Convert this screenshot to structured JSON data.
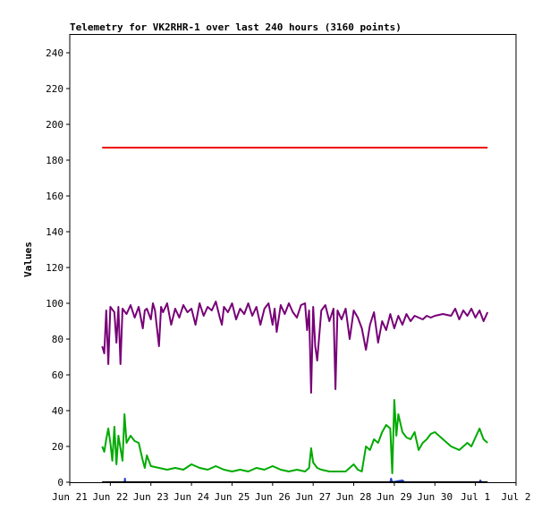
{
  "chart_data": {
    "type": "line",
    "title": "Telemetry for VK2RHR-1 over last 240 hours (3160 points)",
    "xlabel": "",
    "ylabel": "Values",
    "ylim": [
      0,
      250
    ],
    "y_ticks": [
      0,
      20,
      40,
      60,
      80,
      100,
      120,
      140,
      160,
      180,
      200,
      220,
      240
    ],
    "x_ticks": [
      "Jun 21",
      "Jun 22",
      "Jun 23",
      "Jun 24",
      "Jun 25",
      "Jun 26",
      "Jun 27",
      "Jun 28",
      "Jun 29",
      "Jun 30",
      "Jul 1",
      "Jul 2"
    ],
    "xlim_days": [
      21.0,
      32.0
    ],
    "grid": false,
    "legend": "none",
    "series": [
      {
        "color": "#ee0000",
        "points": [
          [
            21.8,
            187
          ],
          [
            22.6,
            187
          ],
          [
            23.6,
            187
          ],
          [
            24.6,
            187
          ],
          [
            25.6,
            187
          ],
          [
            26.6,
            187
          ],
          [
            27.6,
            187
          ],
          [
            28.6,
            187
          ],
          [
            29.6,
            187
          ],
          [
            30.6,
            187
          ],
          [
            31.3,
            187
          ]
        ]
      },
      {
        "color": "#770077",
        "points": [
          [
            21.8,
            76
          ],
          [
            21.85,
            72
          ],
          [
            21.9,
            96
          ],
          [
            21.95,
            66
          ],
          [
            22.0,
            98
          ],
          [
            22.1,
            95
          ],
          [
            22.15,
            78
          ],
          [
            22.2,
            98
          ],
          [
            22.25,
            66
          ],
          [
            22.3,
            97
          ],
          [
            22.4,
            94
          ],
          [
            22.5,
            99
          ],
          [
            22.6,
            92
          ],
          [
            22.7,
            98
          ],
          [
            22.8,
            86
          ],
          [
            22.85,
            96
          ],
          [
            22.9,
            97
          ],
          [
            23.0,
            91
          ],
          [
            23.05,
            100
          ],
          [
            23.1,
            96
          ],
          [
            23.2,
            76
          ],
          [
            23.25,
            98
          ],
          [
            23.3,
            95
          ],
          [
            23.4,
            100
          ],
          [
            23.5,
            88
          ],
          [
            23.6,
            97
          ],
          [
            23.7,
            92
          ],
          [
            23.8,
            99
          ],
          [
            23.9,
            95
          ],
          [
            24.0,
            97
          ],
          [
            24.1,
            88
          ],
          [
            24.2,
            100
          ],
          [
            24.3,
            93
          ],
          [
            24.4,
            98
          ],
          [
            24.5,
            96
          ],
          [
            24.6,
            101
          ],
          [
            24.7,
            92
          ],
          [
            24.75,
            88
          ],
          [
            24.8,
            98
          ],
          [
            24.9,
            95
          ],
          [
            25.0,
            100
          ],
          [
            25.1,
            91
          ],
          [
            25.2,
            97
          ],
          [
            25.3,
            94
          ],
          [
            25.4,
            100
          ],
          [
            25.5,
            93
          ],
          [
            25.6,
            98
          ],
          [
            25.7,
            88
          ],
          [
            25.8,
            97
          ],
          [
            25.9,
            100
          ],
          [
            26.0,
            88
          ],
          [
            26.05,
            97
          ],
          [
            26.1,
            84
          ],
          [
            26.2,
            99
          ],
          [
            26.3,
            94
          ],
          [
            26.4,
            100
          ],
          [
            26.5,
            95
          ],
          [
            26.6,
            92
          ],
          [
            26.7,
            99
          ],
          [
            26.8,
            100
          ],
          [
            26.85,
            85
          ],
          [
            26.9,
            96
          ],
          [
            26.95,
            50
          ],
          [
            27.0,
            98
          ],
          [
            27.05,
            76
          ],
          [
            27.1,
            68
          ],
          [
            27.2,
            96
          ],
          [
            27.3,
            99
          ],
          [
            27.4,
            90
          ],
          [
            27.5,
            97
          ],
          [
            27.55,
            52
          ],
          [
            27.6,
            96
          ],
          [
            27.7,
            91
          ],
          [
            27.8,
            97
          ],
          [
            27.9,
            80
          ],
          [
            28.0,
            96
          ],
          [
            28.1,
            92
          ],
          [
            28.2,
            86
          ],
          [
            28.3,
            74
          ],
          [
            28.4,
            88
          ],
          [
            28.5,
            95
          ],
          [
            28.6,
            78
          ],
          [
            28.7,
            90
          ],
          [
            28.8,
            85
          ],
          [
            28.9,
            94
          ],
          [
            29.0,
            86
          ],
          [
            29.1,
            93
          ],
          [
            29.2,
            88
          ],
          [
            29.3,
            94
          ],
          [
            29.4,
            90
          ],
          [
            29.5,
            93
          ],
          [
            29.6,
            92
          ],
          [
            29.7,
            91
          ],
          [
            29.8,
            93
          ],
          [
            29.9,
            92
          ],
          [
            30.0,
            93
          ],
          [
            30.2,
            94
          ],
          [
            30.4,
            93
          ],
          [
            30.5,
            97
          ],
          [
            30.6,
            91
          ],
          [
            30.7,
            96
          ],
          [
            30.8,
            93
          ],
          [
            30.9,
            97
          ],
          [
            31.0,
            92
          ],
          [
            31.1,
            96
          ],
          [
            31.2,
            90
          ],
          [
            31.3,
            95
          ]
        ]
      },
      {
        "color": "#00aa00",
        "points": [
          [
            21.8,
            20
          ],
          [
            21.85,
            17
          ],
          [
            21.9,
            24
          ],
          [
            21.95,
            30
          ],
          [
            22.0,
            22
          ],
          [
            22.05,
            12
          ],
          [
            22.1,
            31
          ],
          [
            22.15,
            10
          ],
          [
            22.2,
            26
          ],
          [
            22.3,
            12
          ],
          [
            22.35,
            38
          ],
          [
            22.4,
            22
          ],
          [
            22.5,
            26
          ],
          [
            22.6,
            23
          ],
          [
            22.7,
            22
          ],
          [
            22.8,
            12
          ],
          [
            22.85,
            8
          ],
          [
            22.9,
            15
          ],
          [
            23.0,
            9
          ],
          [
            23.2,
            8
          ],
          [
            23.4,
            7
          ],
          [
            23.6,
            8
          ],
          [
            23.8,
            7
          ],
          [
            24.0,
            10
          ],
          [
            24.2,
            8
          ],
          [
            24.4,
            7
          ],
          [
            24.6,
            9
          ],
          [
            24.8,
            7
          ],
          [
            25.0,
            6
          ],
          [
            25.2,
            7
          ],
          [
            25.4,
            6
          ],
          [
            25.6,
            8
          ],
          [
            25.8,
            7
          ],
          [
            26.0,
            9
          ],
          [
            26.2,
            7
          ],
          [
            26.4,
            6
          ],
          [
            26.6,
            7
          ],
          [
            26.8,
            6
          ],
          [
            26.9,
            8
          ],
          [
            26.95,
            19
          ],
          [
            27.0,
            11
          ],
          [
            27.1,
            8
          ],
          [
            27.2,
            7
          ],
          [
            27.4,
            6
          ],
          [
            27.6,
            6
          ],
          [
            27.8,
            6
          ],
          [
            28.0,
            10
          ],
          [
            28.1,
            7
          ],
          [
            28.2,
            6
          ],
          [
            28.3,
            20
          ],
          [
            28.4,
            18
          ],
          [
            28.5,
            24
          ],
          [
            28.6,
            22
          ],
          [
            28.7,
            28
          ],
          [
            28.8,
            32
          ],
          [
            28.9,
            30
          ],
          [
            28.95,
            5
          ],
          [
            29.0,
            46
          ],
          [
            29.05,
            26
          ],
          [
            29.1,
            38
          ],
          [
            29.2,
            28
          ],
          [
            29.3,
            25
          ],
          [
            29.4,
            24
          ],
          [
            29.5,
            28
          ],
          [
            29.6,
            18
          ],
          [
            29.7,
            22
          ],
          [
            29.8,
            24
          ],
          [
            29.9,
            27
          ],
          [
            30.0,
            28
          ],
          [
            30.2,
            24
          ],
          [
            30.4,
            20
          ],
          [
            30.6,
            18
          ],
          [
            30.8,
            22
          ],
          [
            30.9,
            20
          ],
          [
            31.0,
            25
          ],
          [
            31.1,
            30
          ],
          [
            31.2,
            24
          ],
          [
            31.3,
            22
          ]
        ]
      },
      {
        "color": "#2244cc",
        "points": [
          [
            21.8,
            0
          ],
          [
            22.35,
            0
          ],
          [
            22.36,
            2
          ],
          [
            22.37,
            0
          ],
          [
            28.9,
            0
          ],
          [
            28.92,
            2
          ],
          [
            28.95,
            0
          ],
          [
            29.2,
            1
          ],
          [
            29.25,
            0
          ],
          [
            31.1,
            0
          ],
          [
            31.12,
            1
          ],
          [
            31.15,
            0
          ],
          [
            31.3,
            0
          ]
        ]
      },
      {
        "color": "#000000",
        "points": [
          [
            21.8,
            0
          ],
          [
            31.3,
            0
          ]
        ]
      }
    ]
  }
}
